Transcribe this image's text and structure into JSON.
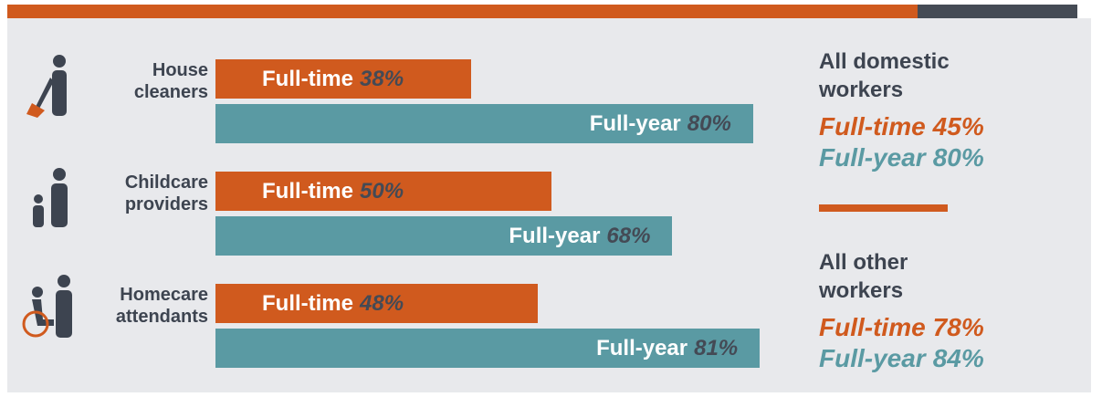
{
  "chart_data": {
    "type": "bar",
    "orientation": "horizontal",
    "categories": [
      "House cleaners",
      "Childcare providers",
      "Homecare attendants"
    ],
    "series": [
      {
        "name": "Full-time",
        "color": "#d05a1e",
        "values": [
          38,
          50,
          48
        ],
        "value_labels": [
          "38%",
          "50%",
          "48%"
        ]
      },
      {
        "name": "Full-year",
        "color": "#5a9aa3",
        "values": [
          80,
          68,
          81
        ],
        "value_labels": [
          "80%",
          "68%",
          "81%"
        ]
      }
    ],
    "summary": [
      {
        "label": "All domestic workers",
        "values": [
          45,
          80
        ],
        "value_labels": [
          "45%",
          "80%"
        ]
      },
      {
        "label": "All other workers",
        "values": [
          78,
          84
        ],
        "value_labels": [
          "78%",
          "84%"
        ]
      }
    ]
  }
}
